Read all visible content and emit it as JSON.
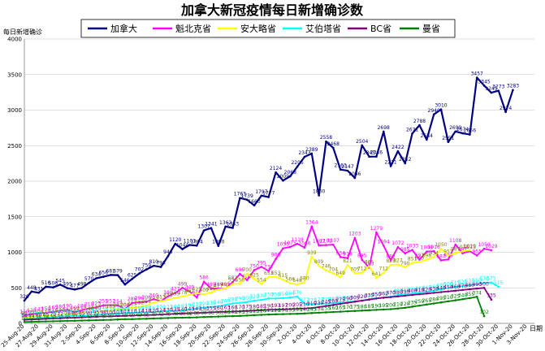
{
  "chart_data": {
    "type": "line",
    "title": "加拿大新冠疫情每日新增确诊数",
    "ylabel": "每日新增确诊",
    "xlabel": "日期",
    "ylim": [
      0,
      4000
    ],
    "yticks": [
      0,
      500,
      1000,
      1500,
      2000,
      2500,
      3000,
      3500,
      4000
    ],
    "grid": true,
    "legend_position": "top",
    "categories": [
      "25-Aug-20",
      "26-Aug-20",
      "27-Aug-20",
      "28-Aug-20",
      "29-Aug-20",
      "30-Aug-20",
      "31-Aug-20",
      "1-Sep-20",
      "2-Sep-20",
      "3-Sep-20",
      "4-Sep-20",
      "5-Sep-20",
      "6-Sep-20",
      "7-Sep-20",
      "8-Sep-20",
      "9-Sep-20",
      "10-Sep-20",
      "11-Sep-20",
      "12-Sep-20",
      "13-Sep-20",
      "14-Sep-20",
      "15-Sep-20",
      "16-Sep-20",
      "17-Sep-20",
      "18-Sep-20",
      "19-Sep-20",
      "20-Sep-20",
      "21-Sep-20",
      "22-Sep-20",
      "23-Sep-20",
      "24-Sep-20",
      "25-Sep-20",
      "26-Sep-20",
      "27-Sep-20",
      "28-Sep-20",
      "29-Sep-20",
      "30-Sep-20",
      "1-Oct-20",
      "2-Oct-20",
      "3-Oct-20",
      "4-Oct-20",
      "5-Oct-20",
      "6-Oct-20",
      "7-Oct-20",
      "8-Oct-20",
      "9-Oct-20",
      "10-Oct-20",
      "11-Oct-20",
      "12-Oct-20",
      "13-Oct-20",
      "14-Oct-20",
      "15-Oct-20",
      "16-Oct-20",
      "17-Oct-20",
      "18-Oct-20",
      "19-Oct-20",
      "20-Oct-20",
      "21-Oct-20",
      "22-Oct-20",
      "23-Oct-20",
      "24-Oct-20",
      "25-Oct-20",
      "26-Oct-20",
      "27-Oct-20",
      "28-Oct-20",
      "29-Oct-20",
      "30-Oct-20",
      "31-Oct-20",
      "1-Nov-20",
      "2-Nov-20",
      "3-Nov-20",
      "4-Nov-20"
    ],
    "xtick_labels": [
      "25-Aug-20",
      "27-Aug-20",
      "29-Aug-20",
      "31-Aug-20",
      "2-Sep-20",
      "4-Sep-20",
      "6-Sep-20",
      "8-Sep-20",
      "10-Sep-20",
      "12-Sep-20",
      "14-Sep-20",
      "16-Sep-20",
      "18-Sep-20",
      "20-Sep-20",
      "22-Sep-20",
      "24-Sep-20",
      "26-Sep-20",
      "28-Sep-20",
      "30-Sep-20",
      "2-Oct-20",
      "4-Oct-20",
      "6-Oct-20",
      "8-Oct-20",
      "10-Oct-20",
      "12-Oct-20",
      "14-Oct-20",
      "16-Oct-20",
      "18-Oct-20",
      "20-Oct-20",
      "22-Oct-20",
      "24-Oct-20",
      "26-Oct-20",
      "28-Oct-20",
      "30-Oct-20",
      "1-Nov-20",
      "3-Nov-20"
    ],
    "series": [
      {
        "name": "加拿大",
        "color": "#000080",
        "values": [
          320,
          448,
          431,
          516,
          506,
          545,
          495,
          477,
          498,
          570,
          634,
          656,
          681,
          679,
          546,
          625,
          702,
          759,
          810,
          793,
          946,
          1120,
          1044,
          1103,
          1094,
          1307,
          1341,
          1090,
          1362,
          1343,
          1763,
          1739,
          1660,
          1797,
          1777,
          2124,
          2009,
          2068,
          2206,
          2343,
          2389,
          1800,
          2558,
          2468,
          2163,
          2147,
          2046,
          2504,
          2345,
          2346,
          2698,
          2211,
          2422,
          2252,
          2671,
          2788,
          2584,
          2940,
          3010,
          2551,
          2699,
          2674,
          2656,
          3457,
          3345,
          3245,
          3273,
          2974,
          3283,
          null,
          null,
          null
        ]
      },
      {
        "name": "魁北克省",
        "color": "#ff00ff",
        "values": [
          110,
          128,
          143,
          150,
          165,
          180,
          190,
          160,
          186,
          210,
          225,
          255,
          257,
          254,
          200,
          286,
          296,
          306,
          340,
          313,
          380,
          427,
          499,
          449,
          365,
          586,
          489,
          489,
          489,
          582,
          696,
          608,
          750,
          795,
          737,
          906,
          1055,
          1075,
          1119,
          1066,
          1364,
          1097,
          1102,
          1107,
          934,
          918,
          1203,
          895,
          783,
          1279,
          1094,
          887,
          1072,
          985,
          1033,
          897,
          1009,
          1016,
          887,
          899,
          1108,
          987,
          1015,
          955,
          1050,
          1029,
          null,
          null,
          null,
          null,
          null,
          null
        ]
      },
      {
        "name": "安大略省",
        "color": "#ffff00",
        "values": [
          85,
          95,
          105,
          110,
          115,
          125,
          130,
          135,
          150,
          148,
          160,
          170,
          185,
          201,
          204,
          221,
          232,
          251,
          293,
          313,
          335,
          359,
          378,
          401,
          425,
          409,
          435,
          477,
          491,
          554,
          556,
          700,
          625,
          554,
          653,
          653,
          615,
          566,
          548,
          580,
          939,
          809,
          746,
          704,
          649,
          821,
          705,
          712,
          805,
          641,
          712,
          823,
          827,
          790,
          851,
          863,
          896,
          934,
          1050,
          957,
          987,
          1015,
          1029,
          null,
          null,
          null,
          null,
          null,
          null,
          null,
          null,
          null
        ]
      },
      {
        "name": "艾伯塔省",
        "color": "#00ffff",
        "values": [
          60,
          70,
          80,
          75,
          90,
          95,
          100,
          110,
          105,
          112,
          120,
          128,
          133,
          138,
          145,
          150,
          155,
          158,
          162,
          170,
          173,
          180,
          182,
          195,
          210,
          220,
          230,
          240,
          260,
          280,
          290,
          300,
          320,
          330,
          350,
          350,
          356,
          364,
          376,
          277,
          271,
          277,
          278,
          285,
          295,
          300,
          310,
          320,
          340,
          355,
          360,
          376,
          400,
          410,
          420,
          432,
          445,
          460,
          480,
          500,
          515,
          525,
          535,
          550,
          570,
          575,
          515,
          null,
          null,
          null,
          null,
          null
        ]
      },
      {
        "name": "BC省",
        "color": "#800080",
        "values": [
          50,
          55,
          60,
          65,
          70,
          72,
          78,
          80,
          85,
          90,
          95,
          98,
          100,
          103,
          107,
          110,
          114,
          118,
          120,
          124,
          130,
          135,
          140,
          143,
          147,
          150,
          155,
          160,
          163,
          166,
          170,
          175,
          180,
          185,
          190,
          193,
          197,
          200,
          205,
          210,
          215,
          230,
          245,
          260,
          275,
          290,
          305,
          320,
          335,
          350,
          362,
          370,
          380,
          390,
          400,
          410,
          420,
          430,
          440,
          450,
          460,
          470,
          480,
          490,
          500,
          335,
          null,
          null,
          null,
          null,
          null,
          null
        ]
      },
      {
        "name": "曼省",
        "color": "#008000",
        "values": [
          20,
          22,
          25,
          28,
          30,
          32,
          35,
          37,
          40,
          42,
          45,
          48,
          50,
          55,
          58,
          60,
          63,
          65,
          70,
          72,
          75,
          78,
          80,
          82,
          85,
          90,
          93,
          96,
          100,
          102,
          105,
          110,
          115,
          120,
          125,
          128,
          130,
          133,
          135,
          140,
          145,
          150,
          155,
          160,
          165,
          170,
          175,
          180,
          185,
          190,
          195,
          200,
          210,
          220,
          235,
          250,
          265,
          280,
          295,
          310,
          325,
          340,
          355,
          374,
          102,
          null,
          null,
          null,
          null,
          null,
          null,
          null
        ]
      }
    ]
  }
}
